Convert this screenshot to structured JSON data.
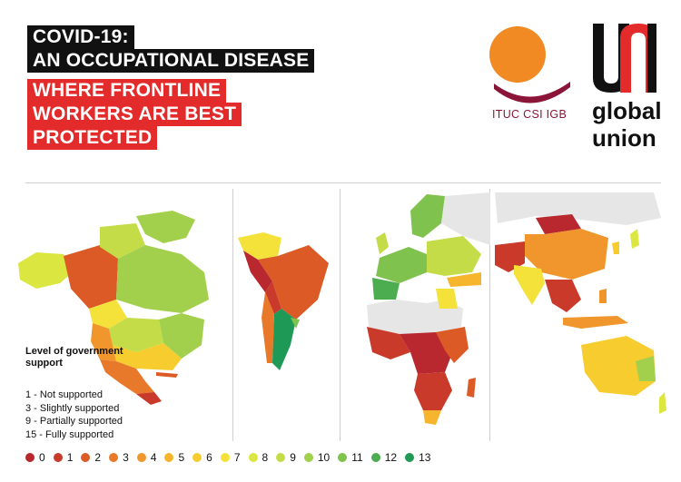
{
  "title": {
    "line1": "COVID-19:",
    "line2": "AN OCCUPATIONAL DISEASE",
    "line3": "WHERE FRONTLINE",
    "line4": "WORKERS ARE BEST",
    "line5": "PROTECTED"
  },
  "logos": {
    "ituc": "ITUC CSI IGB",
    "uni": [
      "global",
      "union"
    ],
    "colors": {
      "ituc_orange": "#f18a23",
      "ituc_arc": "#8a1538",
      "uni_red": "#e32b2b"
    }
  },
  "legend": {
    "title": "Level of government support",
    "items": [
      "1 - Not supported",
      "3 - Slightly supported",
      "9 - Partially supported",
      "15 - Fully supported"
    ],
    "scale": [
      {
        "label": "0",
        "color": "#b8282e"
      },
      {
        "label": "1",
        "color": "#c93a2a"
      },
      {
        "label": "2",
        "color": "#dc5a26"
      },
      {
        "label": "3",
        "color": "#e8792a"
      },
      {
        "label": "4",
        "color": "#f0962c"
      },
      {
        "label": "5",
        "color": "#f6b52c"
      },
      {
        "label": "6",
        "color": "#f7cc2e"
      },
      {
        "label": "7",
        "color": "#f4e23a"
      },
      {
        "label": "8",
        "color": "#dce640"
      },
      {
        "label": "9",
        "color": "#c3dc48"
      },
      {
        "label": "10",
        "color": "#a2d04c"
      },
      {
        "label": "11",
        "color": "#7fc24e"
      },
      {
        "label": "12",
        "color": "#4bac50"
      },
      {
        "label": "13",
        "color": "#1e9a56"
      }
    ]
  },
  "maps": {
    "panels": [
      "north-america",
      "south-america",
      "europe-africa",
      "asia-oceania"
    ],
    "no_data_color": "#e6e6e6"
  }
}
